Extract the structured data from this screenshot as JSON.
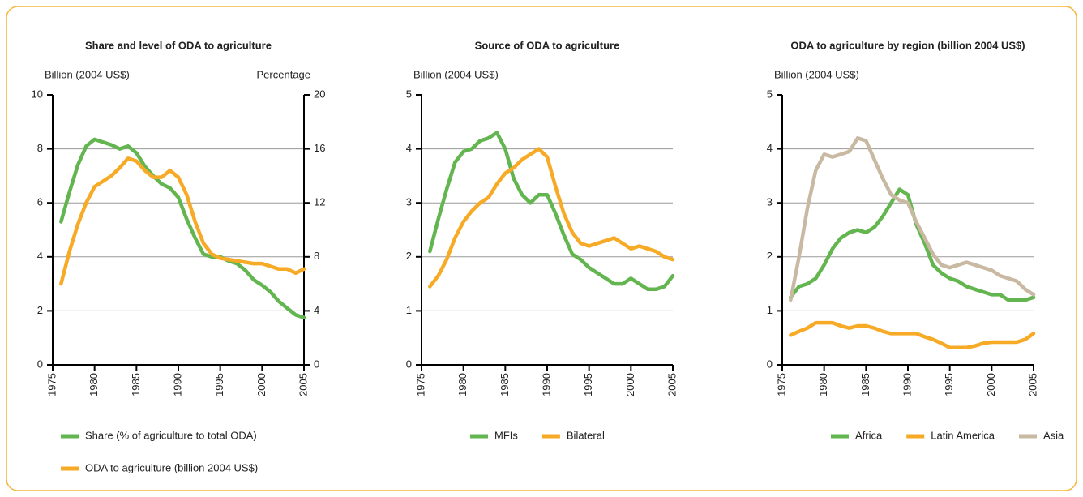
{
  "chart_data": [
    {
      "type": "line",
      "title": "Share and level of ODA to agriculture",
      "ylabel": "Billion (2004 US$)",
      "y2label": "Percentage",
      "x": [
        1976,
        1977,
        1978,
        1979,
        1980,
        1981,
        1982,
        1983,
        1984,
        1985,
        1986,
        1987,
        1988,
        1989,
        1990,
        1991,
        1992,
        1993,
        1994,
        1995,
        1996,
        1997,
        1998,
        1999,
        2000,
        2001,
        2002,
        2003,
        2004,
        2005
      ],
      "xlim": [
        1975,
        2005
      ],
      "xticks": [
        1975,
        1980,
        1985,
        1990,
        1995,
        2000,
        2005
      ],
      "ylim": [
        0,
        10
      ],
      "yticks": [
        0,
        2,
        4,
        6,
        8,
        10
      ],
      "y2lim": [
        0,
        20
      ],
      "y2ticks": [
        0,
        4,
        8,
        12,
        16,
        20
      ],
      "grid": true,
      "series": [
        {
          "name": "Share (% of agriculture to total ODA)",
          "color": "#62b54f",
          "axis": "y2",
          "values": [
            10.6,
            12.8,
            14.8,
            16.2,
            16.7,
            16.5,
            16.3,
            16.0,
            16.2,
            15.7,
            14.7,
            14.0,
            13.4,
            13.1,
            12.4,
            10.8,
            9.4,
            8.2,
            8.0,
            8.0,
            7.7,
            7.5,
            7.0,
            6.3,
            5.9,
            5.4,
            4.7,
            4.2,
            3.7,
            3.5
          ]
        },
        {
          "name": "ODA to agriculture (billion 2004 US$)",
          "color": "#f7aa26",
          "values": [
            3.0,
            4.2,
            5.2,
            6.0,
            6.6,
            6.8,
            7.0,
            7.3,
            7.65,
            7.55,
            7.2,
            6.95,
            6.95,
            7.2,
            6.95,
            6.3,
            5.3,
            4.5,
            4.1,
            3.95,
            3.9,
            3.85,
            3.8,
            3.75,
            3.75,
            3.65,
            3.55,
            3.55,
            3.4,
            3.55
          ]
        }
      ]
    },
    {
      "type": "line",
      "title": "Source of ODA to agriculture",
      "ylabel": "Billion (2004 US$)",
      "x": [
        1976,
        1977,
        1978,
        1979,
        1980,
        1981,
        1982,
        1983,
        1984,
        1985,
        1986,
        1987,
        1988,
        1989,
        1990,
        1991,
        1992,
        1993,
        1994,
        1995,
        1996,
        1997,
        1998,
        1999,
        2000,
        2001,
        2002,
        2003,
        2004,
        2005
      ],
      "xlim": [
        1975,
        2005
      ],
      "xticks": [
        1975,
        1980,
        1985,
        1990,
        1995,
        2000,
        2005
      ],
      "ylim": [
        0,
        5
      ],
      "yticks": [
        0,
        1,
        2,
        3,
        4,
        5
      ],
      "grid": true,
      "series": [
        {
          "name": "MFIs",
          "color": "#62b54f",
          "values": [
            2.1,
            2.7,
            3.25,
            3.75,
            3.95,
            4.0,
            4.15,
            4.2,
            4.3,
            4.0,
            3.45,
            3.15,
            3.0,
            3.15,
            3.15,
            2.8,
            2.4,
            2.05,
            1.95,
            1.8,
            1.7,
            1.6,
            1.5,
            1.5,
            1.6,
            1.5,
            1.4,
            1.4,
            1.45,
            1.65
          ]
        },
        {
          "name": "Bilateral",
          "color": "#f7aa26",
          "values": [
            1.45,
            1.65,
            1.95,
            2.35,
            2.65,
            2.85,
            3.0,
            3.1,
            3.35,
            3.55,
            3.65,
            3.8,
            3.9,
            4.0,
            3.85,
            3.3,
            2.8,
            2.45,
            2.25,
            2.2,
            2.25,
            2.3,
            2.35,
            2.25,
            2.15,
            2.2,
            2.15,
            2.1,
            2.0,
            1.95
          ]
        }
      ]
    },
    {
      "type": "line",
      "title": "ODA to agriculture by region (billion 2004 US$)",
      "ylabel": "Billion (2004 US$)",
      "x": [
        1976,
        1977,
        1978,
        1979,
        1980,
        1981,
        1982,
        1983,
        1984,
        1985,
        1986,
        1987,
        1988,
        1989,
        1990,
        1991,
        1992,
        1993,
        1994,
        1995,
        1996,
        1997,
        1998,
        1999,
        2000,
        2001,
        2002,
        2003,
        2004,
        2005
      ],
      "xlim": [
        1975,
        2005
      ],
      "xticks": [
        1975,
        1980,
        1985,
        1990,
        1995,
        2000,
        2005
      ],
      "ylim": [
        0,
        5
      ],
      "yticks": [
        0,
        1,
        2,
        3,
        4,
        5
      ],
      "grid": true,
      "series": [
        {
          "name": "Africa",
          "color": "#62b54f",
          "values": [
            1.25,
            1.45,
            1.5,
            1.6,
            1.85,
            2.15,
            2.35,
            2.45,
            2.5,
            2.45,
            2.55,
            2.75,
            3.0,
            3.25,
            3.15,
            2.6,
            2.25,
            1.85,
            1.7,
            1.6,
            1.55,
            1.45,
            1.4,
            1.35,
            1.3,
            1.3,
            1.2,
            1.2,
            1.2,
            1.25
          ]
        },
        {
          "name": "Latin America",
          "color": "#f7aa26",
          "values": [
            0.55,
            0.62,
            0.68,
            0.78,
            0.78,
            0.78,
            0.72,
            0.68,
            0.72,
            0.72,
            0.68,
            0.62,
            0.58,
            0.58,
            0.58,
            0.58,
            0.52,
            0.47,
            0.4,
            0.32,
            0.32,
            0.32,
            0.35,
            0.4,
            0.42,
            0.42,
            0.42,
            0.42,
            0.47,
            0.58
          ]
        },
        {
          "name": "Asia",
          "color": "#c9b9a3",
          "values": [
            1.2,
            2.0,
            2.9,
            3.6,
            3.9,
            3.85,
            3.9,
            3.95,
            4.2,
            4.15,
            3.8,
            3.45,
            3.15,
            3.05,
            3.0,
            2.65,
            2.35,
            2.05,
            1.85,
            1.8,
            1.85,
            1.9,
            1.85,
            1.8,
            1.75,
            1.65,
            1.6,
            1.55,
            1.4,
            1.3
          ]
        }
      ]
    }
  ]
}
